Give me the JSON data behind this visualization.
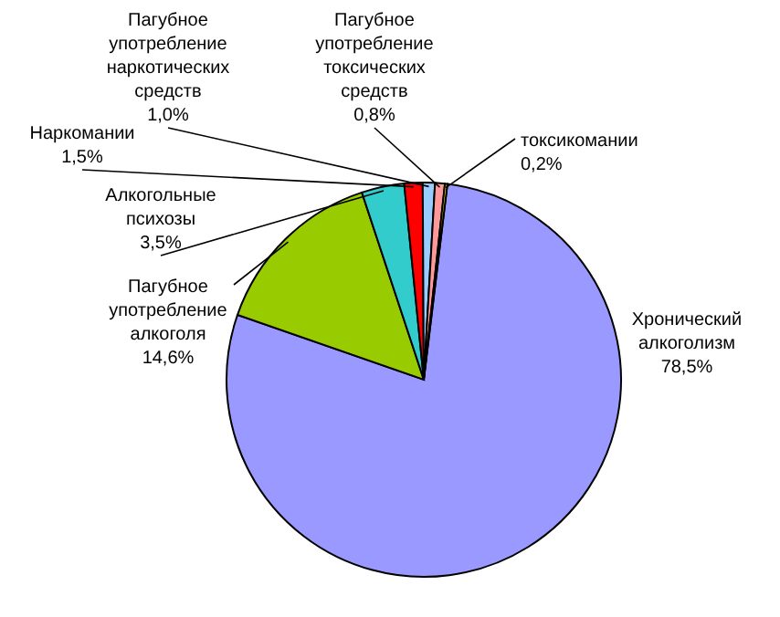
{
  "chart_data": {
    "type": "pie",
    "categories": [
      "Хронический алкоголизм",
      "Пагубное употребление алкоголя",
      "Алкогольные психозы",
      "Наркомании",
      "Пагубное употребление наркотических средств",
      "Пагубное употребление токсических средств",
      "токсикомании"
    ],
    "values": [
      78.5,
      14.6,
      3.5,
      1.5,
      1.0,
      0.8,
      0.2
    ],
    "value_labels": [
      "78,5%",
      "14,6%",
      "3,5%",
      "1,5%",
      "1,0%",
      "0,8%",
      "0,2%"
    ],
    "colors": [
      "#9999ff",
      "#99cc00",
      "#33cccc",
      "#ff0000",
      "#99ccff",
      "#ff9999",
      "#ffff00"
    ]
  }
}
